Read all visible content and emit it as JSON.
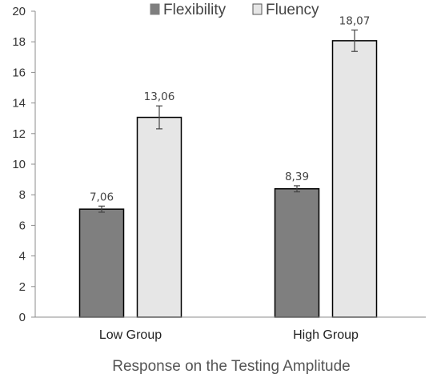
{
  "chart_data": {
    "type": "bar",
    "title": "",
    "xlabel": "Response on the Testing Amplitude",
    "ylabel": "",
    "categories": [
      "Low Group",
      "High Group"
    ],
    "series": [
      {
        "name": "Flexibility",
        "values": [
          7.06,
          8.39
        ],
        "labels": [
          "7,06",
          "8,39"
        ],
        "error": [
          0.2,
          0.2
        ],
        "color": "#7f7f7f"
      },
      {
        "name": "Fluency",
        "values": [
          13.06,
          18.07
        ],
        "labels": [
          "13,06",
          "18,07"
        ],
        "error": [
          0.75,
          0.7
        ],
        "color": "#e6e6e6"
      }
    ],
    "ylim": [
      0,
      20
    ],
    "yticks": [
      0,
      2,
      4,
      6,
      8,
      10,
      12,
      14,
      16,
      18,
      20
    ],
    "grid": false,
    "legend": "top-center",
    "error_bars": true
  }
}
